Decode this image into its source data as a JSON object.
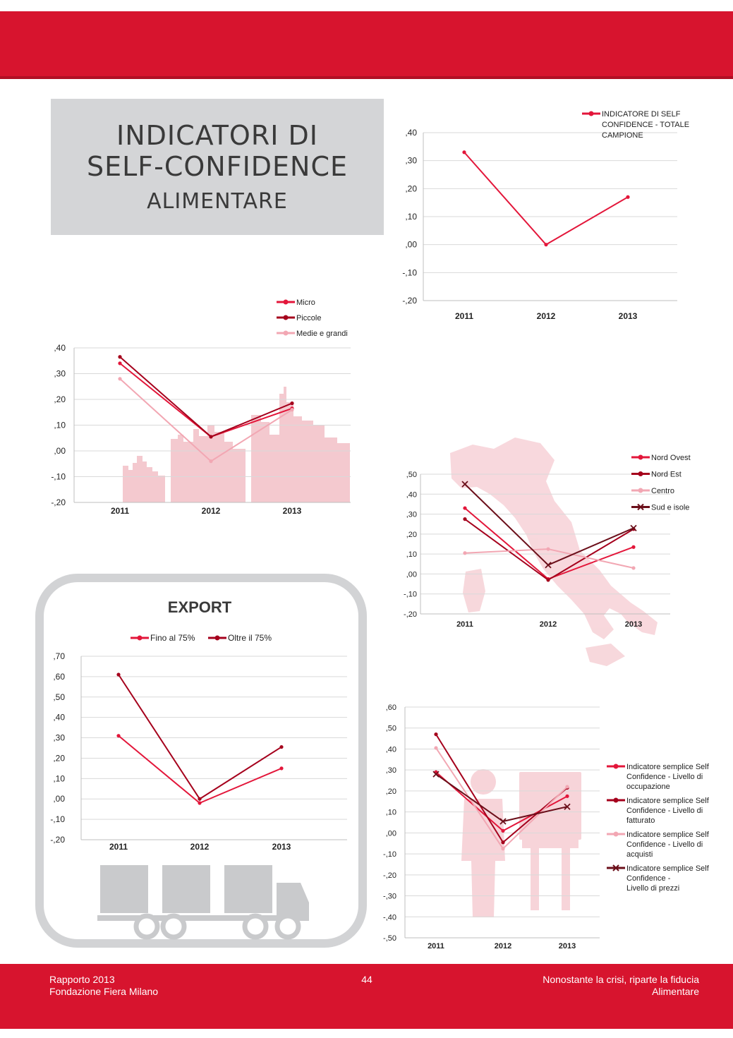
{
  "header": {
    "title_line1": "INDICATORI DI",
    "title_line2": "SELF-CONFIDENCE",
    "title_line3": "ALIMENTARE"
  },
  "footer": {
    "left_line1": "Rapporto 2013",
    "left_line2": "Fondazione Fiera Milano",
    "page_number": "44",
    "right_line1": "Nonostante la crisi, riparte la fiducia",
    "right_line2": "Alimentare"
  },
  "colors": {
    "brand_red": "#d7142e",
    "dark_red": "#a5001c",
    "pink": "#f2a7b3",
    "maroon": "#6b0f1a",
    "grid": "#d9d9d9",
    "title_box": "#d4d5d7"
  },
  "chart_data": [
    {
      "id": "totale",
      "type": "line",
      "title": "",
      "categories": [
        "2011",
        "2012",
        "2013"
      ],
      "ylim": [
        -0.2,
        0.4
      ],
      "yticks": [
        ",40",
        ",30",
        ",20",
        ",10",
        ",00",
        "-,10",
        "-,20"
      ],
      "legend_position": "top-right",
      "series": [
        {
          "name": "INDICATORE DI SELF CONFIDENCE - TOTALE CAMPIONE",
          "legend_lines": [
            "INDICATORE DI SELF",
            "CONFIDENCE - TOTALE",
            "CAMPIONE"
          ],
          "values": [
            0.33,
            0.0,
            0.17
          ],
          "color": "#e3163a",
          "marker": "dot"
        }
      ]
    },
    {
      "id": "dimensione",
      "type": "line",
      "title": "",
      "categories": [
        "2011",
        "2012",
        "2013"
      ],
      "ylim": [
        -0.2,
        0.4
      ],
      "yticks": [
        ",40",
        ",30",
        ",20",
        ",10",
        ",00",
        "-,10",
        "-,20"
      ],
      "legend_position": "top-right",
      "series": [
        {
          "name": "Micro",
          "legend_lines": [
            "Micro"
          ],
          "values": [
            0.34,
            0.055,
            0.165
          ],
          "color": "#e3163a",
          "marker": "dot"
        },
        {
          "name": "Piccole",
          "legend_lines": [
            "Piccole"
          ],
          "values": [
            0.365,
            0.055,
            0.185
          ],
          "color": "#a5001c",
          "marker": "dot"
        },
        {
          "name": "Medie e grandi",
          "legend_lines": [
            "Medie e grandi"
          ],
          "values": [
            0.28,
            -0.04,
            0.16
          ],
          "color": "#f2a7b3",
          "marker": "dot"
        }
      ]
    },
    {
      "id": "area",
      "type": "line",
      "title": "",
      "categories": [
        "2011",
        "2012",
        "2013"
      ],
      "ylim": [
        -0.2,
        0.5
      ],
      "yticks": [
        ",50",
        ",40",
        ",30",
        ",20",
        ",10",
        ",00",
        "-,10",
        "-,20"
      ],
      "legend_position": "top-right",
      "series": [
        {
          "name": "Nord Ovest",
          "legend_lines": [
            "Nord Ovest"
          ],
          "values": [
            0.33,
            -0.025,
            0.135
          ],
          "color": "#e3163a",
          "marker": "dot"
        },
        {
          "name": "Nord Est",
          "legend_lines": [
            "Nord Est"
          ],
          "values": [
            0.275,
            -0.03,
            0.225
          ],
          "color": "#a5001c",
          "marker": "dot"
        },
        {
          "name": "Centro",
          "legend_lines": [
            "Centro"
          ],
          "values": [
            0.105,
            0.125,
            0.03
          ],
          "color": "#f2a7b3",
          "marker": "dot"
        },
        {
          "name": "Sud e isole",
          "legend_lines": [
            "Sud e isole"
          ],
          "values": [
            0.45,
            0.045,
            0.23
          ],
          "color": "#6b0f1a",
          "marker": "x"
        }
      ]
    },
    {
      "id": "export",
      "type": "line",
      "title": "EXPORT",
      "categories": [
        "2011",
        "2012",
        "2013"
      ],
      "ylim": [
        -0.2,
        0.7
      ],
      "yticks": [
        ",70",
        ",60",
        ",50",
        ",40",
        ",30",
        ",20",
        ",10",
        ",00",
        "-,10",
        "-,20"
      ],
      "legend_position": "top",
      "series": [
        {
          "name": "Fino al 75%",
          "legend_lines": [
            "Fino al 75%"
          ],
          "values": [
            0.31,
            -0.02,
            0.15
          ],
          "color": "#e3163a",
          "marker": "dot"
        },
        {
          "name": "Oltre il 75%",
          "legend_lines": [
            "Oltre il 75%"
          ],
          "values": [
            0.61,
            0.0,
            0.255
          ],
          "color": "#a5001c",
          "marker": "dot"
        }
      ]
    },
    {
      "id": "semplici",
      "type": "line",
      "title": "",
      "categories": [
        "2011",
        "2012",
        "2013"
      ],
      "ylim": [
        -0.5,
        0.6
      ],
      "yticks": [
        ",60",
        ",50",
        ",40",
        ",30",
        ",20",
        ",10",
        ",00",
        "-,10",
        "-,20",
        "-,30",
        "-,40",
        "-,50"
      ],
      "legend_position": "right",
      "series": [
        {
          "name": "Indicatore semplice Self Confidence - Livello di occupazione",
          "legend_lines": [
            "Indicatore semplice Self",
            "Confidence - Livello di",
            "occupazione"
          ],
          "values": [
            0.29,
            0.01,
            0.175
          ],
          "color": "#e3163a",
          "marker": "dot"
        },
        {
          "name": "Indicatore semplice Self Confidence - Livello di fatturato",
          "legend_lines": [
            "Indicatore semplice Self",
            "Confidence - Livello di",
            "fatturato"
          ],
          "values": [
            0.47,
            -0.045,
            0.215
          ],
          "color": "#a5001c",
          "marker": "dot"
        },
        {
          "name": "Indicatore semplice Self Confidence - Livello di acquisti",
          "legend_lines": [
            "Indicatore semplice Self",
            "Confidence - Livello di",
            "acquisti"
          ],
          "values": [
            0.405,
            -0.075,
            0.22
          ],
          "color": "#f2a7b3",
          "marker": "dot"
        },
        {
          "name": "Indicatore semplice Self Confidence - Livello di prezzi",
          "legend_lines": [
            "Indicatore semplice Self",
            "Confidence -",
            "Livello di prezzi"
          ],
          "values": [
            0.28,
            0.055,
            0.125
          ],
          "color": "#6b0f1a",
          "marker": "x"
        }
      ]
    }
  ]
}
